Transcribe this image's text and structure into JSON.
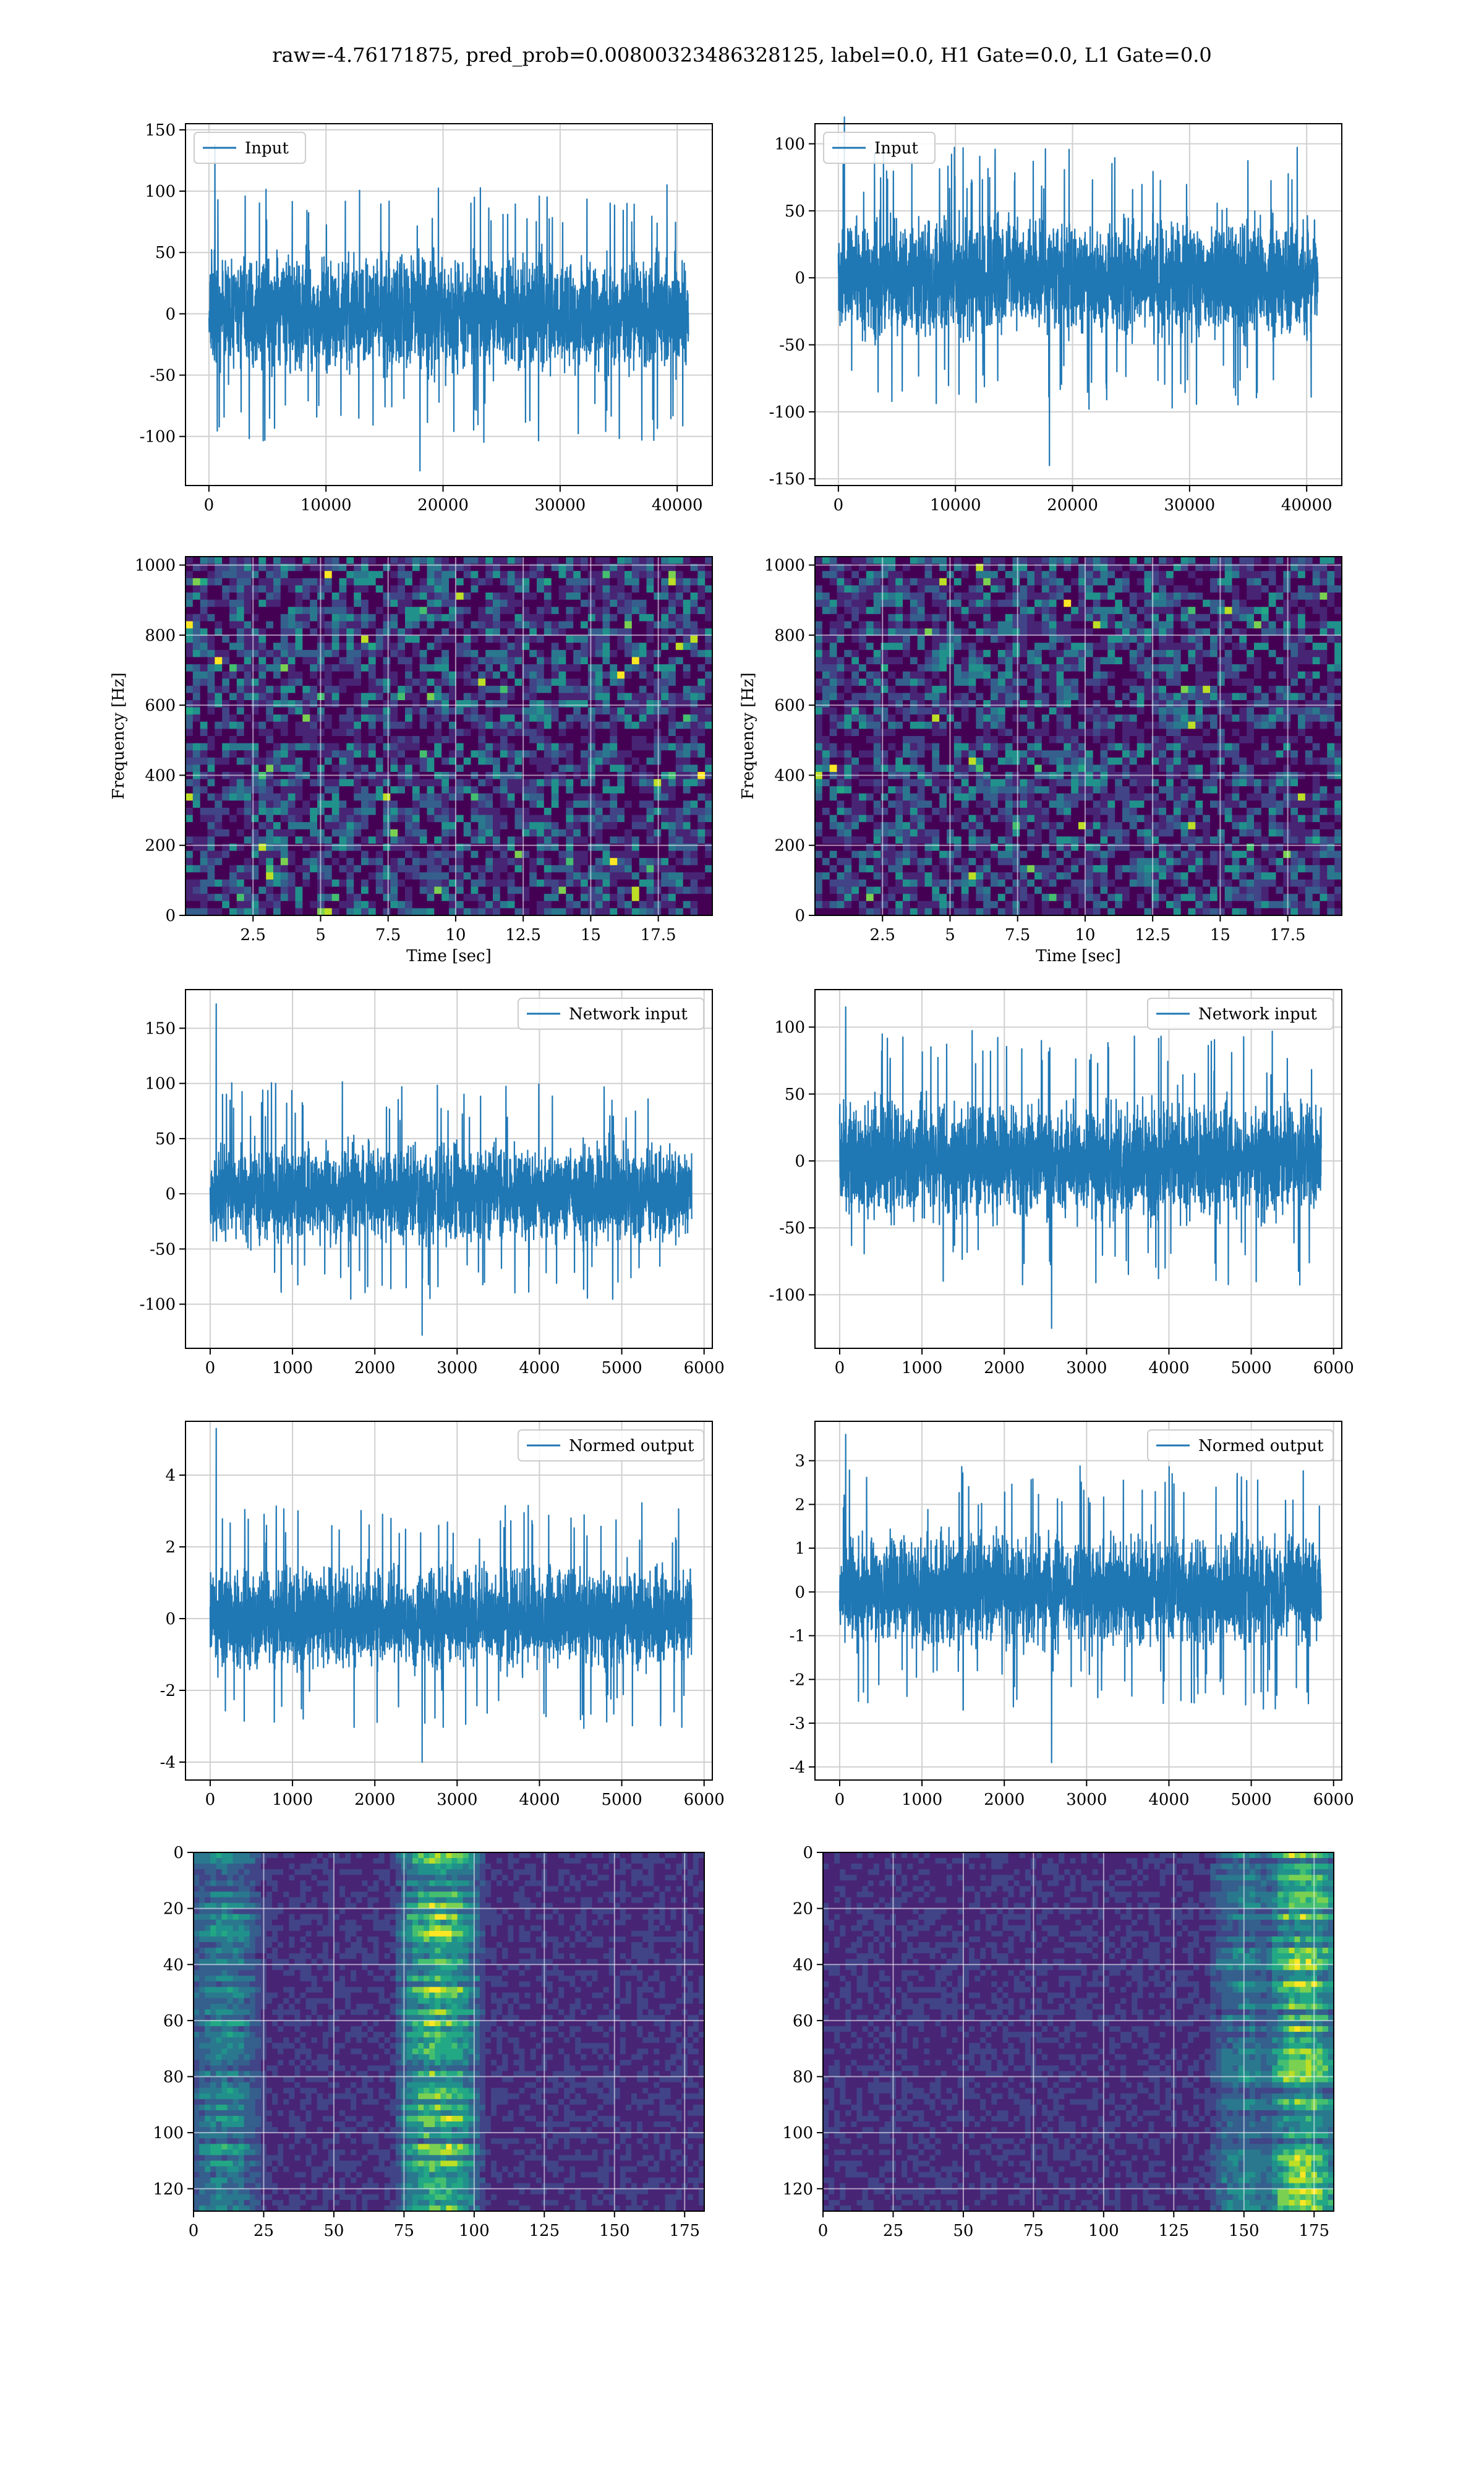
{
  "figure": {
    "suptitle": "raw=-4.76171875, pred_prob=0.00800323486328125, label=0.0, H1 Gate=0.0, L1 Gate=0.0"
  },
  "colors": {
    "series": "#1f77b4",
    "grid": "#d0d0d0",
    "viridis": [
      "#440154",
      "#482475",
      "#414487",
      "#355f8d",
      "#2a788e",
      "#21918c",
      "#22a884",
      "#44bf70",
      "#7ad151",
      "#bddf26",
      "#fde725"
    ]
  },
  "chart_data": [
    {
      "id": "input-left",
      "type": "line",
      "legend": "Input",
      "legend_loc": "upper left",
      "grid": true,
      "xlim": [
        -2000,
        43000
      ],
      "ylim": [
        -140,
        155
      ],
      "xticks": [
        0,
        10000,
        20000,
        30000,
        40000
      ],
      "yticks": [
        -100,
        -50,
        0,
        50,
        100,
        150
      ],
      "series": [
        {
          "name": "Input",
          "x_range": [
            0,
            40960
          ],
          "core_band": [
            -62,
            62
          ],
          "spike_max": 138,
          "spike_min": -128
        }
      ]
    },
    {
      "id": "input-right",
      "type": "line",
      "legend": "Input",
      "legend_loc": "upper left",
      "grid": true,
      "xlim": [
        -2000,
        43000
      ],
      "ylim": [
        -155,
        115
      ],
      "xticks": [
        0,
        10000,
        20000,
        30000,
        40000
      ],
      "yticks": [
        -150,
        -100,
        -50,
        0,
        50,
        100
      ],
      "series": [
        {
          "name": "Input",
          "x_range": [
            0,
            40960
          ],
          "core_band": [
            -58,
            58
          ],
          "spike_max": 120,
          "spike_min": -140
        }
      ]
    },
    {
      "id": "spectrogram-left",
      "type": "heatmap",
      "grid": true,
      "xlabel": "Time [sec]",
      "ylabel": "Frequency [Hz]",
      "xlim": [
        0,
        19.5
      ],
      "ylim": [
        0,
        1024
      ],
      "xticks": [
        2.5,
        5.0,
        7.5,
        10.0,
        12.5,
        15.0,
        17.5
      ],
      "yticks": [
        0,
        200,
        400,
        600,
        800,
        1000
      ]
    },
    {
      "id": "spectrogram-right",
      "type": "heatmap",
      "grid": true,
      "xlabel": "Time [sec]",
      "ylabel": "Frequency [Hz]",
      "xlim": [
        0,
        19.5
      ],
      "ylim": [
        0,
        1024
      ],
      "xticks": [
        2.5,
        5.0,
        7.5,
        10.0,
        12.5,
        15.0,
        17.5
      ],
      "yticks": [
        0,
        200,
        400,
        600,
        800,
        1000
      ]
    },
    {
      "id": "network-input-left",
      "type": "line",
      "legend": "Network input",
      "legend_loc": "upper right",
      "grid": true,
      "xlim": [
        -300,
        6100
      ],
      "ylim": [
        -140,
        185
      ],
      "xticks": [
        0,
        1000,
        2000,
        3000,
        4000,
        5000,
        6000
      ],
      "yticks": [
        -100,
        -50,
        0,
        50,
        100,
        150
      ],
      "series": [
        {
          "name": "Network input",
          "x_range": [
            0,
            5850
          ],
          "core_band": [
            -58,
            60
          ],
          "spike_max": 172,
          "spike_min": -128
        }
      ]
    },
    {
      "id": "network-input-right",
      "type": "line",
      "legend": "Network input",
      "legend_loc": "upper right",
      "grid": true,
      "xlim": [
        -300,
        6100
      ],
      "ylim": [
        -140,
        128
      ],
      "xticks": [
        0,
        1000,
        2000,
        3000,
        4000,
        5000,
        6000
      ],
      "yticks": [
        -100,
        -50,
        0,
        50,
        100
      ],
      "series": [
        {
          "name": "Network input",
          "x_range": [
            0,
            5850
          ],
          "core_band": [
            -55,
            58
          ],
          "spike_max": 115,
          "spike_min": -125
        }
      ]
    },
    {
      "id": "normed-output-left",
      "type": "line",
      "legend": "Normed output",
      "legend_loc": "upper right",
      "grid": true,
      "xlim": [
        -300,
        6100
      ],
      "ylim": [
        -4.5,
        5.5
      ],
      "xticks": [
        0,
        1000,
        2000,
        3000,
        4000,
        5000,
        6000
      ],
      "yticks": [
        -4,
        -2,
        0,
        2,
        4
      ],
      "series": [
        {
          "name": "Normed output",
          "x_range": [
            0,
            5850
          ],
          "core_band": [
            -1.8,
            1.9
          ],
          "spike_max": 5.3,
          "spike_min": -4.0
        }
      ]
    },
    {
      "id": "normed-output-right",
      "type": "line",
      "legend": "Normed output",
      "legend_loc": "upper right",
      "grid": true,
      "xlim": [
        -300,
        6100
      ],
      "ylim": [
        -4.3,
        3.9
      ],
      "xticks": [
        0,
        1000,
        2000,
        3000,
        4000,
        5000,
        6000
      ],
      "yticks": [
        -4,
        -3,
        -2,
        -1,
        0,
        1,
        2,
        3
      ],
      "series": [
        {
          "name": "Normed output",
          "x_range": [
            0,
            5850
          ],
          "core_band": [
            -1.6,
            1.7
          ],
          "spike_max": 3.6,
          "spike_min": -3.9
        }
      ]
    },
    {
      "id": "feature-map-left",
      "type": "heatmap",
      "grid": true,
      "xlim": [
        0,
        182
      ],
      "ylim": [
        128,
        0
      ],
      "xticks": [
        0,
        25,
        50,
        75,
        100,
        125,
        150,
        175
      ],
      "yticks": [
        0,
        20,
        40,
        60,
        80,
        100,
        120
      ],
      "hot_columns": [
        [
          75,
          100,
          1.0
        ],
        [
          0,
          22,
          0.55
        ]
      ]
    },
    {
      "id": "feature-map-right",
      "type": "heatmap",
      "grid": true,
      "xlim": [
        0,
        182
      ],
      "ylim": [
        128,
        0
      ],
      "xticks": [
        0,
        25,
        50,
        75,
        100,
        125,
        150,
        175
      ],
      "yticks": [
        0,
        20,
        40,
        60,
        80,
        100,
        120
      ],
      "hot_columns": [
        [
          160,
          182,
          1.0
        ],
        [
          140,
          160,
          0.45
        ]
      ]
    }
  ]
}
